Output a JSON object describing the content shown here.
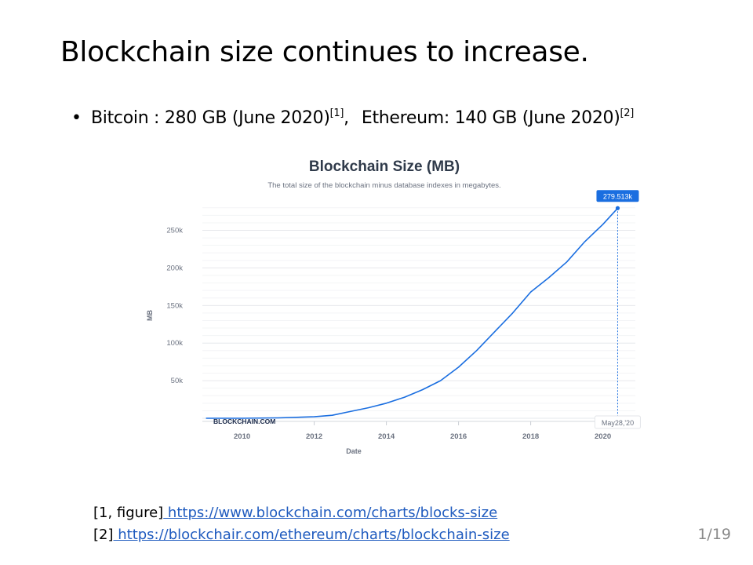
{
  "slide": {
    "title": "Blockchain size continues to increase.",
    "bullet": {
      "symbol": "•",
      "part1": "Bitcoin : 280 GB (June 2020)",
      "ref1": "[1]",
      "sep": ",",
      "part2": "Ethereum: 140 GB (June 2020)",
      "ref2": "[2]"
    },
    "references": [
      {
        "label": "[1, figure]",
        "url": " https://www.blockchain.com/charts/blocks-size"
      },
      {
        "label": "[2]",
        "url": " https://blockchair.com/ethereum/charts/blockchain-size"
      }
    ],
    "page_number": "1/19"
  },
  "chart_data": {
    "type": "line",
    "title": "Blockchain Size (MB)",
    "subtitle": "The total size of the blockchain minus database indexes in megabytes.",
    "xlabel": "Date",
    "ylabel": "MB",
    "x_ticks": [
      "2010",
      "2012",
      "2014",
      "2016",
      "2018",
      "2020"
    ],
    "y_ticks": [
      "50k",
      "100k",
      "150k",
      "200k",
      "250k"
    ],
    "xlim": [
      2008.9,
      2020.9
    ],
    "ylim": [
      0,
      285000
    ],
    "grid": true,
    "watermark": "BLOCKCHAIN.COM",
    "tooltip_value": "279.513k",
    "tooltip_date": "May28,'20",
    "line_color": "#1a6ee0",
    "series": [
      {
        "x": [
          2009.0,
          2010.0,
          2011.0,
          2012.0,
          2012.5,
          2013.0,
          2013.5,
          2014.0,
          2014.5,
          2015.0,
          2015.5,
          2016.0,
          2016.5,
          2017.0,
          2017.5,
          2018.0,
          2018.5,
          2019.0,
          2019.5,
          2020.0,
          2020.41
        ],
        "y": [
          0,
          0,
          500,
          2000,
          4000,
          9000,
          14000,
          20000,
          28000,
          38000,
          50000,
          68000,
          90000,
          115000,
          140000,
          168000,
          187000,
          208000,
          235000,
          258000,
          279513
        ]
      }
    ]
  }
}
